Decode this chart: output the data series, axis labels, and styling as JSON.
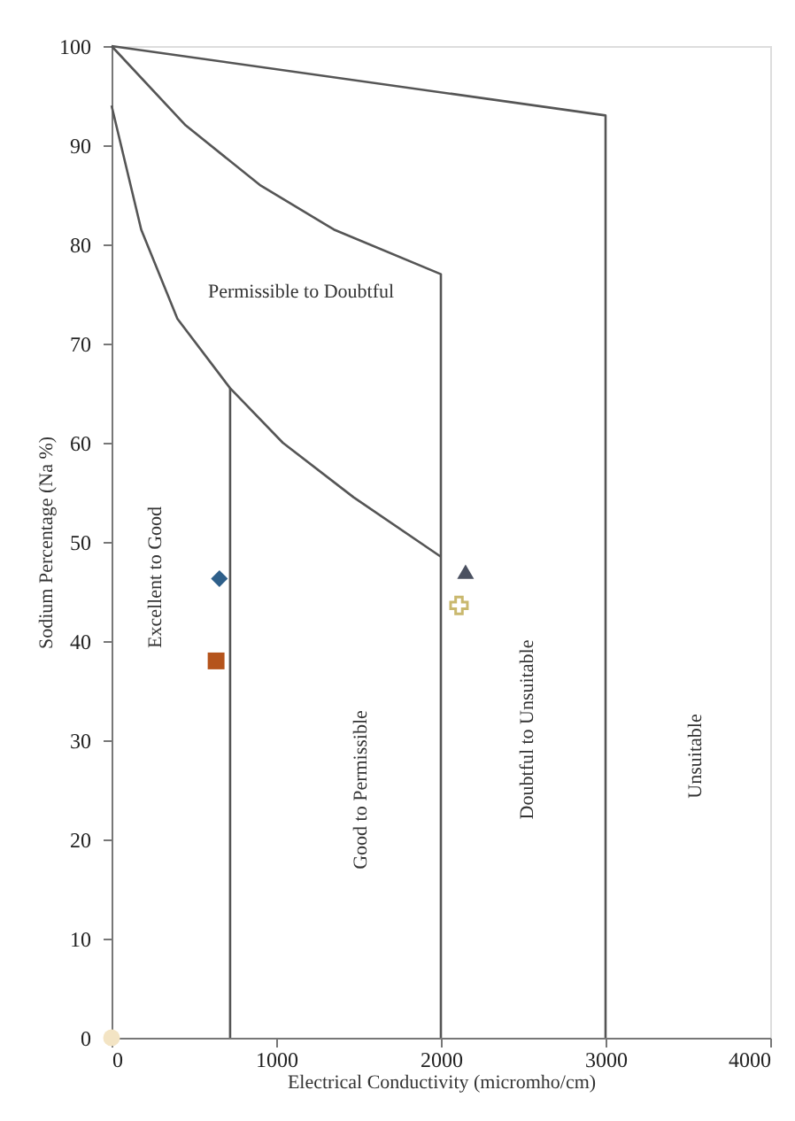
{
  "chart_data": {
    "type": "scatter",
    "xlabel": "Electrical Conductivity (micromho/cm)",
    "ylabel": "Sodium Percentage (Na %)",
    "xlim": [
      0,
      4000
    ],
    "xticks": [
      0,
      1000,
      2000,
      3000,
      4000
    ],
    "ylim": [
      0,
      100
    ],
    "yticks": [
      0,
      10,
      20,
      30,
      40,
      50,
      60,
      70,
      80,
      90,
      100
    ],
    "grid": false,
    "series": [
      {
        "type": "line",
        "color": "#555555",
        "marker": "none",
        "line_style": "solid",
        "x": [
          0,
          3000,
          3000
        ],
        "values": [
          100,
          93,
          0
        ]
      },
      {
        "type": "line",
        "color": "#555555",
        "marker": "none",
        "line_style": "solid",
        "x": [
          0,
          450,
          900,
          1350,
          2000,
          2000
        ],
        "values": [
          100,
          92,
          86,
          81.5,
          77,
          0
        ]
      },
      {
        "type": "line",
        "color": "#555555",
        "marker": "none",
        "line_style": "solid",
        "x": [
          0,
          180,
          400,
          720,
          1040,
          1470,
          2000
        ],
        "values": [
          94,
          81.5,
          72.5,
          65.5,
          60,
          54.5,
          48.5
        ]
      },
      {
        "type": "line",
        "color": "#555555",
        "marker": "none",
        "line_style": "solid",
        "x": [
          720,
          720
        ],
        "values": [
          65.5,
          0
        ]
      },
      {
        "color": "#2e5f8a",
        "marker": "diamond",
        "x": [
          655
        ],
        "values": [
          46.3
        ]
      },
      {
        "color": "#b5541c",
        "marker": "square",
        "x": [
          635
        ],
        "values": [
          38
        ]
      },
      {
        "color": "#4a5060",
        "marker": "triangle",
        "x": [
          2150
        ],
        "values": [
          47
        ]
      },
      {
        "color": "#c9b86e",
        "marker": "cross",
        "x": [
          2110
        ],
        "values": [
          43.6
        ]
      },
      {
        "color": "#f3e4c4",
        "marker": "circle",
        "x": [
          0
        ],
        "values": [
          0
        ]
      }
    ],
    "annotations": [
      "Permissible to Doubtful",
      "Excellent to Good",
      "Good to Permissible",
      "Doubtful to Unsuitable",
      "Unsuitable"
    ]
  }
}
